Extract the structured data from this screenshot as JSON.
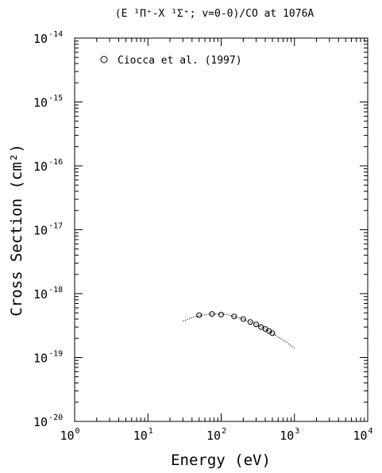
{
  "chart_data": {
    "type": "scatter",
    "title": "(E ¹Π⁺-X ¹Σ⁺; v=0-0)/CO at 1076A",
    "xlabel": "Energy (eV)",
    "ylabel": "Cross Section (cm²)",
    "xscale": "log",
    "yscale": "log",
    "xlim": [
      1,
      10000
    ],
    "ylim": [
      1e-20,
      1e-14
    ],
    "x_ticks": [
      {
        "value": 1,
        "mant": "10",
        "exp": "0"
      },
      {
        "value": 10,
        "mant": "10",
        "exp": "1"
      },
      {
        "value": 100,
        "mant": "10",
        "exp": "2"
      },
      {
        "value": 1000,
        "mant": "10",
        "exp": "3"
      },
      {
        "value": 10000,
        "mant": "10",
        "exp": "4"
      }
    ],
    "y_ticks": [
      {
        "value": 1e-20,
        "mant": "10",
        "exp": "-20"
      },
      {
        "value": 1e-19,
        "mant": "10",
        "exp": "-19"
      },
      {
        "value": 1e-18,
        "mant": "10",
        "exp": "-18"
      },
      {
        "value": 1e-17,
        "mant": "10",
        "exp": "-17"
      },
      {
        "value": 1e-16,
        "mant": "10",
        "exp": "-16"
      },
      {
        "value": 1e-15,
        "mant": "10",
        "exp": "-15"
      },
      {
        "value": 1e-14,
        "mant": "10",
        "exp": "-14"
      }
    ],
    "legend": {
      "placement": "top-left",
      "label": "Ciocca et al. (1997)",
      "marker": "circle"
    },
    "series": [
      {
        "name": "Ciocca et al. (1997)",
        "marker": "circle",
        "x": [
          50,
          75,
          100,
          150,
          200,
          250,
          300,
          350,
          400,
          450,
          500
        ],
        "y": [
          4.6e-19,
          4.8e-19,
          4.7e-19,
          4.4e-19,
          4e-19,
          3.6e-19,
          3.3e-19,
          3e-19,
          2.8e-19,
          2.6e-19,
          2.4e-19
        ]
      },
      {
        "style": "dotted-line",
        "x": [
          30,
          40,
          50,
          60,
          75,
          90,
          100,
          120,
          150,
          200,
          250,
          300,
          400,
          500,
          600,
          800,
          1000
        ],
        "y": [
          3.7e-19,
          4.2e-19,
          4.5e-19,
          4.7e-19,
          4.8e-19,
          4.8e-19,
          4.8e-19,
          4.7e-19,
          4.4e-19,
          4e-19,
          3.6e-19,
          3.3e-19,
          2.8e-19,
          2.4e-19,
          2.1e-19,
          1.7e-19,
          1.4e-19
        ]
      }
    ]
  }
}
